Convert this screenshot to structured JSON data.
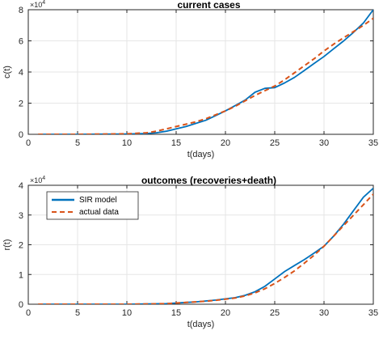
{
  "colors": {
    "sir": "#0072bd",
    "actual": "#d95319",
    "grid": "#e6e6e6",
    "axis": "#262626"
  },
  "legend": {
    "sir_label": "SIR model",
    "actual_label": "actual data",
    "placement": "top-left (lower plot)"
  },
  "chart_data": [
    {
      "type": "line",
      "title": "current cases",
      "xlabel": "t(days)",
      "ylabel": "c(t)",
      "exponent_label": "×10",
      "exponent_power": "4",
      "xlim": [
        0,
        35
      ],
      "ylim": [
        0,
        8
      ],
      "xticks": [
        "0",
        "5",
        "10",
        "15",
        "20",
        "25",
        "30",
        "35"
      ],
      "yticks": [
        "0",
        "2",
        "4",
        "6",
        "8"
      ],
      "grid": true,
      "series": [
        {
          "name": "SIR model",
          "style": "solid",
          "x": [
            1,
            5,
            10,
            12,
            13,
            14,
            15,
            16,
            17,
            18,
            19,
            20,
            21,
            22,
            23,
            24,
            25,
            26,
            27,
            28,
            29,
            30,
            31,
            32,
            33,
            34,
            35
          ],
          "values": [
            0,
            0,
            0.02,
            0.05,
            0.1,
            0.2,
            0.35,
            0.5,
            0.7,
            0.9,
            1.2,
            1.5,
            1.85,
            2.2,
            2.7,
            2.95,
            3.0,
            3.3,
            3.65,
            4.1,
            4.55,
            5.0,
            5.5,
            6.0,
            6.55,
            7.15,
            8.0
          ]
        },
        {
          "name": "actual data",
          "style": "dashed",
          "x": [
            1,
            5,
            10,
            12,
            13,
            14,
            15,
            16,
            17,
            18,
            19,
            20,
            21,
            22,
            23,
            24,
            25,
            26,
            27,
            28,
            29,
            30,
            31,
            32,
            33,
            34,
            35
          ],
          "values": [
            0,
            0,
            0.03,
            0.1,
            0.2,
            0.35,
            0.5,
            0.65,
            0.8,
            1.0,
            1.25,
            1.5,
            1.8,
            2.15,
            2.5,
            2.8,
            3.1,
            3.5,
            3.95,
            4.4,
            4.85,
            5.35,
            5.8,
            6.2,
            6.6,
            7.0,
            7.45
          ]
        }
      ]
    },
    {
      "type": "line",
      "title": "outcomes (recoveries+death)",
      "xlabel": "t(days)",
      "ylabel": "r(t)",
      "exponent_label": "×10",
      "exponent_power": "4",
      "xlim": [
        0,
        35
      ],
      "ylim": [
        0,
        4
      ],
      "xticks": [
        "0",
        "5",
        "10",
        "15",
        "20",
        "25",
        "30",
        "35"
      ],
      "yticks": [
        "0",
        "1",
        "2",
        "3",
        "4"
      ],
      "grid": true,
      "series": [
        {
          "name": "SIR model",
          "style": "solid",
          "x": [
            1,
            5,
            10,
            14,
            15,
            16,
            17,
            18,
            19,
            20,
            21,
            22,
            23,
            24,
            25,
            26,
            27,
            28,
            29,
            30,
            31,
            32,
            33,
            34,
            35
          ],
          "values": [
            0,
            0,
            0,
            0.02,
            0.04,
            0.06,
            0.08,
            0.11,
            0.14,
            0.18,
            0.22,
            0.3,
            0.42,
            0.6,
            0.85,
            1.1,
            1.3,
            1.5,
            1.72,
            1.95,
            2.3,
            2.7,
            3.15,
            3.6,
            3.9
          ]
        },
        {
          "name": "actual data",
          "style": "dashed",
          "x": [
            1,
            5,
            10,
            14,
            15,
            16,
            17,
            18,
            19,
            20,
            21,
            22,
            23,
            24,
            25,
            26,
            27,
            28,
            29,
            30,
            31,
            32,
            33,
            34,
            35
          ],
          "values": [
            0,
            0,
            0,
            0.02,
            0.04,
            0.06,
            0.08,
            0.1,
            0.13,
            0.17,
            0.21,
            0.28,
            0.38,
            0.52,
            0.7,
            0.9,
            1.12,
            1.38,
            1.65,
            1.95,
            2.3,
            2.65,
            3.0,
            3.35,
            3.7
          ]
        }
      ]
    }
  ]
}
